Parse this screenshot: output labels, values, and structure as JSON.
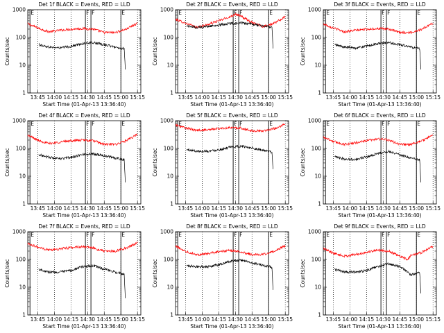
{
  "chart_data": [
    {
      "type": "line",
      "title": "Det 1f BLACK = Events, RED = LLD",
      "xlabel": "Start Time (01-Apr-13 13:36:40)",
      "ylabel": "Counts/sec",
      "xticks": [
        "13:45",
        "14:00",
        "14:15",
        "14:30",
        "14:45",
        "15:00",
        "15:15"
      ],
      "yticks": [
        "1",
        "10",
        "100",
        "1000"
      ],
      "ylim": [
        1,
        1000
      ],
      "yscale": "log",
      "markers": [
        {
          "label": "E",
          "x": "13:38"
        },
        {
          "label": "F",
          "x": "14:28"
        },
        {
          "label": "F",
          "x": "14:33"
        },
        {
          "label": "E",
          "x": "15:00"
        }
      ],
      "series": [
        {
          "name": "RED = LLD",
          "color": "#ff0000",
          "x": [
            "13:36",
            "13:45",
            "13:55",
            "14:05",
            "14:15",
            "14:25",
            "14:35",
            "14:45",
            "14:55",
            "15:05",
            "15:15"
          ],
          "values": [
            310,
            220,
            160,
            180,
            200,
            210,
            200,
            150,
            150,
            200,
            330
          ]
        },
        {
          "name": "BLACK = Events",
          "color": "#000000",
          "x": [
            "13:46",
            "13:55",
            "14:05",
            "14:15",
            "14:25",
            "14:35",
            "14:45",
            "14:55",
            "15:02",
            "15:03",
            "15:04"
          ],
          "values": [
            55,
            45,
            42,
            48,
            60,
            65,
            55,
            45,
            40,
            38,
            7
          ]
        }
      ]
    },
    {
      "type": "line",
      "title": "Det 2f BLACK = Events, RED = LLD",
      "xlabel": "Start Time (01-Apr-13 13:36:40)",
      "ylabel": "Counts/sec",
      "xticks": [
        "13:45",
        "14:00",
        "14:15",
        "14:30",
        "14:45",
        "15:00",
        "15:15"
      ],
      "yticks": [
        "1",
        "10",
        "100",
        "1000"
      ],
      "ylim": [
        1,
        1000
      ],
      "yscale": "log",
      "markers": [
        {
          "label": "E",
          "x": "13:38"
        },
        {
          "label": "F",
          "x": "14:28"
        },
        {
          "label": "F",
          "x": "14:33"
        },
        {
          "label": "E",
          "x": "15:00"
        }
      ],
      "series": [
        {
          "name": "RED = LLD",
          "color": "#ff0000",
          "x": [
            "13:36",
            "13:45",
            "13:55",
            "14:05",
            "14:15",
            "14:25",
            "14:30",
            "14:35",
            "14:45",
            "14:55",
            "15:05",
            "15:15"
          ],
          "values": [
            450,
            330,
            230,
            290,
            400,
            550,
            700,
            580,
            350,
            250,
            320,
            550
          ]
        },
        {
          "name": "BLACK = Events",
          "color": "#000000",
          "x": [
            "13:46",
            "13:55",
            "14:05",
            "14:15",
            "14:25",
            "14:35",
            "14:45",
            "14:55",
            "15:02",
            "15:03",
            "15:04"
          ],
          "values": [
            260,
            230,
            250,
            280,
            320,
            330,
            300,
            260,
            240,
            230,
            40
          ]
        }
      ]
    },
    {
      "type": "line",
      "title": "Det 3f BLACK = Events, RED = LLD",
      "xlabel": "Start Time (01-Apr-13 13:36:40)",
      "ylabel": "Counts/sec",
      "xticks": [
        "13:45",
        "14:00",
        "14:15",
        "14:30",
        "14:45",
        "15:00",
        "15:15"
      ],
      "yticks": [
        "1",
        "10",
        "100",
        "1000"
      ],
      "ylim": [
        1,
        1000
      ],
      "yscale": "log",
      "markers": [
        {
          "label": "E",
          "x": "13:38"
        },
        {
          "label": "F",
          "x": "14:28"
        },
        {
          "label": "F",
          "x": "14:33"
        },
        {
          "label": "E",
          "x": "15:00"
        }
      ],
      "series": [
        {
          "name": "RED = LLD",
          "color": "#ff0000",
          "x": [
            "13:36",
            "13:45",
            "13:55",
            "14:05",
            "14:15",
            "14:25",
            "14:35",
            "14:45",
            "14:55",
            "15:05",
            "15:15"
          ],
          "values": [
            310,
            220,
            160,
            180,
            200,
            210,
            200,
            150,
            150,
            200,
            330
          ]
        },
        {
          "name": "BLACK = Events",
          "color": "#000000",
          "x": [
            "13:46",
            "13:55",
            "14:05",
            "14:15",
            "14:25",
            "14:35",
            "14:45",
            "14:55",
            "15:02",
            "15:03",
            "15:04"
          ],
          "values": [
            55,
            45,
            42,
            48,
            60,
            65,
            55,
            45,
            40,
            38,
            7
          ]
        }
      ]
    },
    {
      "type": "line",
      "title": "Det 4f BLACK = Events, RED = LLD",
      "xlabel": "Start Time (01-Apr-13 13:36:40)",
      "ylabel": "Counts/sec",
      "xticks": [
        "13:45",
        "14:00",
        "14:15",
        "14:30",
        "14:45",
        "15:00",
        "15:15"
      ],
      "yticks": [
        "1",
        "10",
        "100",
        "1000"
      ],
      "ylim": [
        1,
        1000
      ],
      "yscale": "log",
      "markers": [
        {
          "label": "E",
          "x": "13:38"
        },
        {
          "label": "F",
          "x": "14:28"
        },
        {
          "label": "F",
          "x": "14:33"
        },
        {
          "label": "E",
          "x": "15:00"
        }
      ],
      "series": [
        {
          "name": "RED = LLD",
          "color": "#ff0000",
          "x": [
            "13:36",
            "13:45",
            "13:55",
            "14:05",
            "14:15",
            "14:25",
            "14:35",
            "14:45",
            "14:55",
            "15:05",
            "15:15"
          ],
          "values": [
            300,
            200,
            150,
            170,
            190,
            200,
            190,
            140,
            140,
            190,
            320
          ]
        },
        {
          "name": "BLACK = Events",
          "color": "#000000",
          "x": [
            "13:46",
            "13:55",
            "14:05",
            "14:15",
            "14:25",
            "14:35",
            "14:45",
            "14:55",
            "15:02",
            "15:03",
            "15:04"
          ],
          "values": [
            60,
            48,
            42,
            48,
            60,
            65,
            55,
            45,
            40,
            38,
            6
          ]
        }
      ]
    },
    {
      "type": "line",
      "title": "Det 5f BLACK = Events, RED = LLD",
      "xlabel": "Start Time (01-Apr-13 13:36:40)",
      "ylabel": "Counts/sec",
      "xticks": [
        "13:45",
        "14:00",
        "14:15",
        "14:30",
        "14:45",
        "15:00",
        "15:15"
      ],
      "yticks": [
        "1",
        "10",
        "100",
        "1000"
      ],
      "ylim": [
        1,
        1000
      ],
      "yscale": "log",
      "markers": [
        {
          "label": "E",
          "x": "13:38"
        },
        {
          "label": "F",
          "x": "14:28"
        },
        {
          "label": "F",
          "x": "14:33"
        },
        {
          "label": "E",
          "x": "15:00"
        }
      ],
      "series": [
        {
          "name": "RED = LLD",
          "color": "#ff0000",
          "x": [
            "13:36",
            "13:45",
            "13:55",
            "14:05",
            "14:15",
            "14:25",
            "14:35",
            "14:45",
            "14:55",
            "15:05",
            "15:15"
          ],
          "values": [
            700,
            550,
            450,
            470,
            520,
            560,
            540,
            430,
            430,
            520,
            750
          ]
        },
        {
          "name": "BLACK = Events",
          "color": "#000000",
          "x": [
            "13:46",
            "13:55",
            "14:05",
            "14:15",
            "14:25",
            "14:35",
            "14:45",
            "14:55",
            "15:02",
            "15:03",
            "15:04"
          ],
          "values": [
            90,
            80,
            80,
            90,
            110,
            120,
            105,
            85,
            75,
            70,
            18
          ]
        }
      ]
    },
    {
      "type": "line",
      "title": "Det 6f BLACK = Events, RED = LLD",
      "xlabel": "Start Time (01-Apr-13 13:36:40)",
      "ylabel": "Counts/sec",
      "xticks": [
        "13:45",
        "14:00",
        "14:15",
        "14:30",
        "14:45",
        "15:00",
        "15:15"
      ],
      "yticks": [
        "1",
        "10",
        "100",
        "1000"
      ],
      "ylim": [
        1,
        1000
      ],
      "yscale": "log",
      "markers": [
        {
          "label": "E",
          "x": "13:38"
        },
        {
          "label": "F",
          "x": "14:28"
        },
        {
          "label": "F",
          "x": "14:33"
        },
        {
          "label": "E",
          "x": "15:00"
        }
      ],
      "series": [
        {
          "name": "RED = LLD",
          "color": "#ff0000",
          "x": [
            "13:36",
            "13:45",
            "13:55",
            "14:05",
            "14:15",
            "14:25",
            "14:35",
            "14:45",
            "14:55",
            "15:05",
            "15:15"
          ],
          "values": [
            260,
            180,
            140,
            160,
            190,
            220,
            200,
            140,
            140,
            190,
            300
          ]
        },
        {
          "name": "BLACK = Events",
          "color": "#000000",
          "x": [
            "13:46",
            "13:55",
            "14:05",
            "14:15",
            "14:25",
            "14:35",
            "14:45",
            "14:55",
            "15:02",
            "15:03",
            "15:04"
          ],
          "values": [
            50,
            42,
            40,
            50,
            65,
            80,
            60,
            45,
            40,
            38,
            6
          ]
        }
      ]
    },
    {
      "type": "line",
      "title": "Det 7f BLACK = Events, RED = LLD",
      "xlabel": "Start Time (01-Apr-13 13:36:40)",
      "ylabel": "Counts/sec",
      "xticks": [
        "13:45",
        "14:00",
        "14:15",
        "14:30",
        "14:45",
        "15:00",
        "15:15"
      ],
      "yticks": [
        "1",
        "10",
        "100",
        "1000"
      ],
      "ylim": [
        1,
        1000
      ],
      "yscale": "log",
      "markers": [
        {
          "label": "E",
          "x": "13:38"
        },
        {
          "label": "F",
          "x": "14:28"
        },
        {
          "label": "F",
          "x": "14:33"
        },
        {
          "label": "E",
          "x": "15:00"
        }
      ],
      "series": [
        {
          "name": "RED = LLD",
          "color": "#ff0000",
          "x": [
            "13:36",
            "13:45",
            "13:55",
            "14:05",
            "14:15",
            "14:25",
            "14:35",
            "14:45",
            "14:55",
            "15:05",
            "15:15"
          ],
          "values": [
            380,
            280,
            220,
            240,
            270,
            290,
            260,
            200,
            200,
            260,
            400
          ]
        },
        {
          "name": "BLACK = Events",
          "color": "#000000",
          "x": [
            "13:46",
            "13:55",
            "14:05",
            "14:15",
            "14:25",
            "14:35",
            "14:45",
            "14:55",
            "15:02",
            "15:03",
            "15:04"
          ],
          "values": [
            45,
            35,
            35,
            40,
            55,
            60,
            45,
            35,
            30,
            28,
            4
          ]
        }
      ]
    },
    {
      "type": "line",
      "title": "Det 8f BLACK = Events, RED = LLD",
      "xlabel": "Start Time (01-Apr-13 13:36:40)",
      "ylabel": "Counts/sec",
      "xticks": [
        "13:45",
        "14:00",
        "14:15",
        "14:30",
        "14:45",
        "15:00",
        "15:15"
      ],
      "yticks": [
        "1",
        "10",
        "100",
        "1000"
      ],
      "ylim": [
        1,
        1000
      ],
      "yscale": "log",
      "markers": [
        {
          "label": "E",
          "x": "13:38"
        },
        {
          "label": "F",
          "x": "14:28"
        },
        {
          "label": "F",
          "x": "14:33"
        },
        {
          "label": "E",
          "x": "15:00"
        }
      ],
      "series": [
        {
          "name": "RED = LLD",
          "color": "#ff0000",
          "x": [
            "13:36",
            "13:45",
            "13:55",
            "14:05",
            "14:15",
            "14:25",
            "14:35",
            "14:45",
            "14:55",
            "15:05",
            "15:15"
          ],
          "values": [
            300,
            200,
            150,
            160,
            190,
            210,
            190,
            150,
            150,
            200,
            310
          ]
        },
        {
          "name": "BLACK = Events",
          "color": "#000000",
          "x": [
            "13:46",
            "13:55",
            "14:05",
            "14:15",
            "14:25",
            "14:35",
            "14:45",
            "14:55",
            "15:02",
            "15:03",
            "15:04"
          ],
          "values": [
            60,
            55,
            55,
            65,
            85,
            95,
            75,
            60,
            55,
            50,
            8
          ]
        }
      ]
    },
    {
      "type": "line",
      "title": "Det 9f BLACK = Events, RED = LLD",
      "xlabel": "Start Time (01-Apr-13 13:36:40)",
      "ylabel": "Counts/sec",
      "xticks": [
        "13:45",
        "14:00",
        "14:15",
        "14:30",
        "14:45",
        "15:00",
        "15:15"
      ],
      "yticks": [
        "1",
        "10",
        "100",
        "1000"
      ],
      "ylim": [
        1,
        1000
      ],
      "yscale": "log",
      "markers": [
        {
          "label": "E",
          "x": "13:38"
        },
        {
          "label": "F",
          "x": "14:28"
        },
        {
          "label": "F",
          "x": "14:33"
        },
        {
          "label": "E",
          "x": "15:00"
        }
      ],
      "series": [
        {
          "name": "RED = LLD",
          "color": "#ff0000",
          "x": [
            "13:36",
            "13:45",
            "13:55",
            "14:05",
            "14:15",
            "14:25",
            "14:35",
            "14:45",
            "14:52",
            "14:55",
            "15:05",
            "15:15"
          ],
          "values": [
            250,
            170,
            130,
            150,
            180,
            220,
            200,
            130,
            100,
            140,
            180,
            300
          ]
        },
        {
          "name": "BLACK = Events",
          "color": "#000000",
          "x": [
            "13:46",
            "13:55",
            "14:05",
            "14:15",
            "14:25",
            "14:35",
            "14:45",
            "14:52",
            "14:55",
            "15:02",
            "15:03",
            "15:04"
          ],
          "values": [
            45,
            35,
            35,
            40,
            55,
            70,
            55,
            35,
            28,
            35,
            32,
            6
          ]
        }
      ]
    }
  ]
}
